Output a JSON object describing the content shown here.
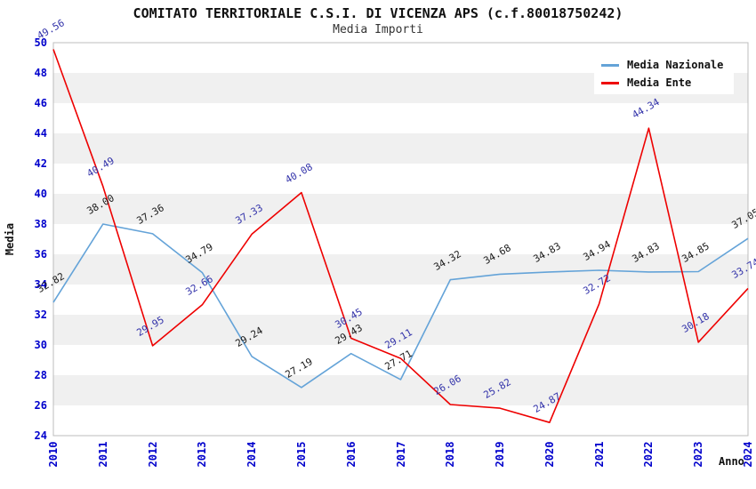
{
  "chart_data": {
    "type": "line",
    "title": "COMITATO TERRITORIALE C.S.I. DI VICENZA APS (c.f.80018750242)",
    "subtitle": "Media Importi",
    "xlabel": "Anno",
    "ylabel": "Media",
    "categories": [
      "2010",
      "2011",
      "2012",
      "2013",
      "2014",
      "2015",
      "2016",
      "2017",
      "2018",
      "2019",
      "2020",
      "2021",
      "2022",
      "2023",
      "2024"
    ],
    "series": [
      {
        "name": "Media Nazionale",
        "color": "#64a3d8",
        "label_color": "#1a1a1a",
        "values": [
          32.82,
          38.0,
          37.36,
          34.79,
          29.24,
          27.19,
          29.43,
          27.71,
          34.32,
          34.68,
          34.83,
          34.94,
          34.83,
          34.85,
          37.05
        ]
      },
      {
        "name": "Media Ente",
        "color": "#ee0000",
        "label_color": "#3333aa",
        "values": [
          49.56,
          40.49,
          29.95,
          32.66,
          37.33,
          40.08,
          30.45,
          29.11,
          26.06,
          25.82,
          24.87,
          32.72,
          44.34,
          30.18,
          33.74
        ]
      }
    ],
    "ylim": [
      24,
      50
    ],
    "ytick_step": 2,
    "grid": "alternating-horizontal-bands",
    "legend_position": "top-right",
    "colors": {
      "tick_label": "#0000cc",
      "band_gray": "#f0f0f0",
      "plot_border": "#bdbdbd",
      "background": "#ffffff"
    }
  }
}
